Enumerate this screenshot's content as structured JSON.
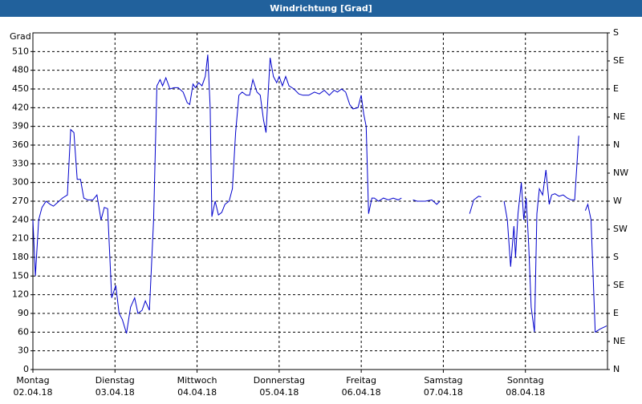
{
  "chart_data": {
    "type": "line",
    "title": "Windrichtung [Grad]",
    "y_label": "Grad",
    "xlim": [
      0,
      7
    ],
    "ylim": [
      0,
      540
    ],
    "y2lim": [
      0,
      540
    ],
    "xticks": [
      {
        "value": 0,
        "label": "Montag",
        "date": "02.04.18"
      },
      {
        "value": 1,
        "label": "Dienstag",
        "date": "03.04.18"
      },
      {
        "value": 2,
        "label": "Mittwoch",
        "date": "04.04.18"
      },
      {
        "value": 3,
        "label": "Donnerstag",
        "date": "05.04.18"
      },
      {
        "value": 4,
        "label": "Freitag",
        "date": "06.04.18"
      },
      {
        "value": 5,
        "label": "Samstag",
        "date": "07.04.18"
      },
      {
        "value": 6,
        "label": "Sonntag",
        "date": "08.04.18"
      }
    ],
    "yticks": [
      0,
      30,
      60,
      90,
      120,
      150,
      180,
      210,
      240,
      270,
      300,
      330,
      360,
      390,
      420,
      450,
      480,
      510
    ],
    "y2ticks": [
      {
        "value": 0,
        "label": "N"
      },
      {
        "value": 45,
        "label": "NE"
      },
      {
        "value": 90,
        "label": "E"
      },
      {
        "value": 135,
        "label": "SE"
      },
      {
        "value": 180,
        "label": "S"
      },
      {
        "value": 225,
        "label": "SW"
      },
      {
        "value": 270,
        "label": "W"
      },
      {
        "value": 315,
        "label": "NW"
      },
      {
        "value": 360,
        "label": "N"
      },
      {
        "value": 405,
        "label": "NE"
      },
      {
        "value": 450,
        "label": "E"
      },
      {
        "value": 495,
        "label": "SE"
      },
      {
        "value": 540,
        "label": "S"
      }
    ],
    "grid": true,
    "x": [
      0,
      0.03,
      0.07,
      0.11,
      0.16,
      0.21,
      0.25,
      0.3,
      0.36,
      0.42,
      0.46,
      0.5,
      0.54,
      0.58,
      0.62,
      0.67,
      0.73,
      0.78,
      0.83,
      0.87,
      0.91,
      0.96,
      1.01,
      1.05,
      1.09,
      1.14,
      1.19,
      1.24,
      1.28,
      1.33,
      1.37,
      1.42,
      1.47,
      1.51,
      1.55,
      1.58,
      1.62,
      1.67,
      1.72,
      1.77,
      1.83,
      1.88,
      1.91,
      1.95,
      1.98,
      2.02,
      2.06,
      2.1,
      2.13,
      2.16,
      2.18,
      2.22,
      2.26,
      2.3,
      2.34,
      2.39,
      2.43,
      2.47,
      2.51,
      2.55,
      2.6,
      2.64,
      2.68,
      2.73,
      2.77,
      2.81,
      2.84,
      2.89,
      2.93,
      2.97,
      3.0,
      3.04,
      3.08,
      3.12,
      3.18,
      3.24,
      3.29,
      3.36,
      3.43,
      3.49,
      3.55,
      3.61,
      3.67,
      3.71,
      3.76,
      3.81,
      3.86,
      3.9,
      3.96,
      4.0,
      4.03,
      4.06,
      4.09,
      4.13,
      4.16,
      4.21,
      4.27,
      4.33,
      4.39,
      4.45,
      4.49,
      4.57,
      4.63,
      4.68,
      4.78,
      4.86,
      4.92,
      4.96,
      5.1,
      5.32,
      5.37,
      5.43,
      5.46,
      5.6,
      5.74,
      5.78,
      5.82,
      5.86,
      5.88,
      5.91,
      5.95,
      5.98,
      6.01,
      6.04,
      6.07,
      6.11,
      6.14,
      6.17,
      6.21,
      6.25,
      6.29,
      6.32,
      6.36,
      6.41,
      6.46,
      6.51,
      6.56,
      6.6,
      6.65,
      6.7,
      6.73,
      6.76,
      6.8,
      6.85,
      6.91,
      6.99
    ],
    "series": [
      {
        "name": "Windrichtung",
        "color": "#0000cc",
        "values": [
          240,
          150,
          240,
          260,
          270,
          265,
          262,
          268,
          275,
          280,
          385,
          380,
          305,
          305,
          275,
          272,
          272,
          280,
          240,
          260,
          258,
          115,
          135,
          90,
          80,
          58,
          100,
          115,
          90,
          95,
          110,
          95,
          240,
          455,
          465,
          455,
          468,
          450,
          452,
          452,
          445,
          428,
          425,
          458,
          452,
          460,
          455,
          470,
          505,
          420,
          245,
          270,
          248,
          252,
          265,
          270,
          290,
          380,
          440,
          445,
          440,
          440,
          465,
          445,
          440,
          400,
          380,
          500,
          470,
          460,
          470,
          455,
          470,
          455,
          450,
          442,
          440,
          440,
          445,
          442,
          448,
          440,
          448,
          445,
          450,
          445,
          425,
          418,
          420,
          440,
          410,
          390,
          250,
          275,
          275,
          270,
          275,
          272,
          275,
          272,
          275,
          null,
          272,
          270,
          270,
          272,
          265,
          270,
          null,
          250,
          272,
          278,
          277,
          null,
          270,
          240,
          165,
          230,
          180,
          250,
          300,
          240,
          275,
          200,
          100,
          60,
          250,
          290,
          280,
          320,
          265,
          280,
          282,
          278,
          280,
          275,
          272,
          272,
          375,
          null,
          255,
          265,
          240,
          60,
          65,
          70
        ]
      }
    ]
  }
}
